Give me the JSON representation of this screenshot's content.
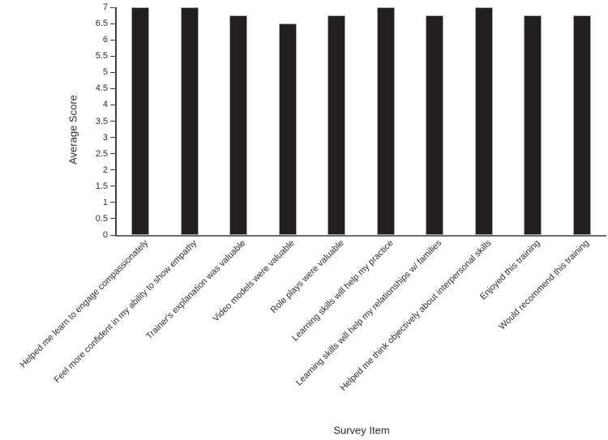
{
  "chart_data": {
    "type": "bar",
    "title": "",
    "xlabel": "Survey Item",
    "ylabel": "Average Score",
    "categories": [
      "Helped me learn to engage compassionately",
      "Feel more confident in my ability to show empathy",
      "Trainer's explanation was valuable",
      "Video models were valuable",
      "Role plays were valuable",
      "Learning skills will help my practice",
      "Learning skills will help my relationships w/ families",
      "Helped me think objectively about interpersonal skills",
      "Enjoyed this training",
      "Would recommend this training"
    ],
    "values": [
      7,
      7,
      6.75,
      6.5,
      6.75,
      7,
      6.75,
      7,
      6.75,
      6.75
    ],
    "ylim": [
      0,
      7
    ],
    "ytick_step": 0.5,
    "y_tick_labels": [
      "0",
      "0.5",
      "1",
      "1.5",
      "2",
      "2.5",
      "3",
      "3.5",
      "4",
      "4.5",
      "5",
      "5.5",
      "6",
      "6.5",
      "7"
    ],
    "bar_color": "#231f20",
    "bar_border_color": "#aaaaaa",
    "axis_color": "#3f3f3f",
    "grid": false,
    "legend": false
  }
}
